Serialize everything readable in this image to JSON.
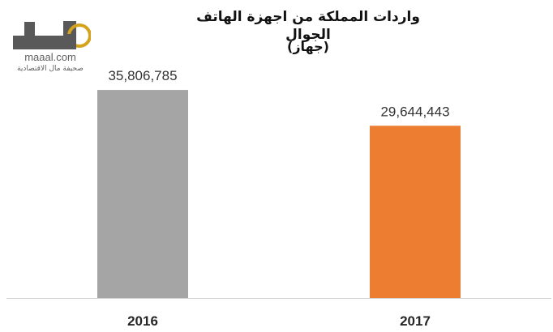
{
  "logo": {
    "domain": "maaal.com",
    "tagline": "صحيفة مال الاقتصادية",
    "colors": {
      "dark": "#595959",
      "accent": "#d4a21c"
    }
  },
  "chart_data": {
    "type": "bar",
    "title": "واردات المملكة من اجهزة الهاتف الجوال",
    "subtitle": "(جهاز)",
    "categories": [
      "2016",
      "2017"
    ],
    "values": [
      35806785,
      29644443
    ],
    "data_labels": [
      "35,806,785",
      "29,644,443"
    ],
    "colors": [
      "#a5a5a5",
      "#ed7d31"
    ],
    "ylim": [
      0,
      40000000
    ],
    "grid": false,
    "legend": "none"
  }
}
